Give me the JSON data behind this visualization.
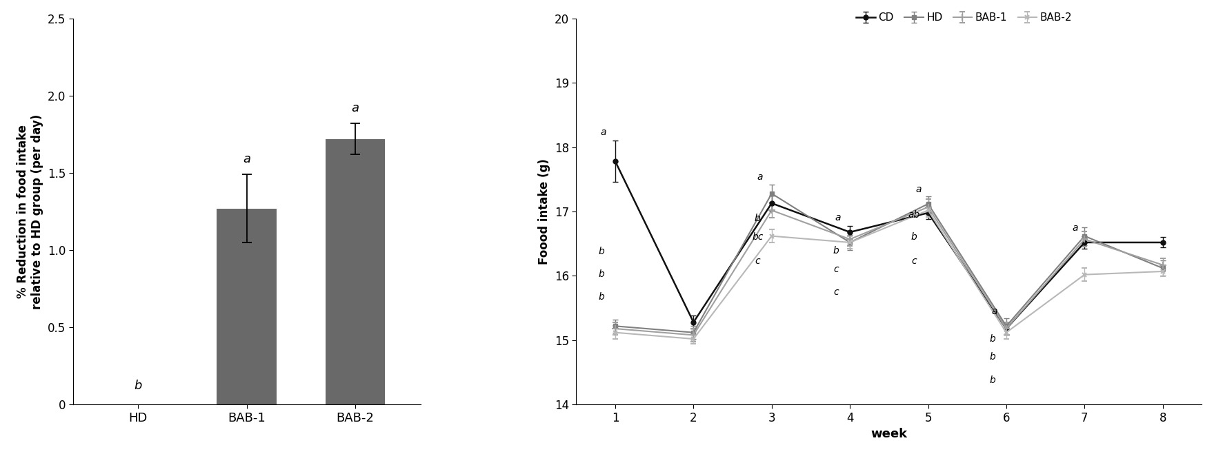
{
  "bar_categories": [
    "HD",
    "BAB-1",
    "BAB-2"
  ],
  "bar_values": [
    0.0,
    1.27,
    1.72
  ],
  "bar_errors": [
    0.0,
    0.22,
    0.1
  ],
  "bar_labels": [
    "b",
    "a",
    "a"
  ],
  "bar_color": "#696969",
  "bar_ylabel": "% Reduction in food intake\nrelative to HD group (per day)",
  "bar_ylim": [
    0,
    2.5
  ],
  "bar_yticks": [
    0,
    0.5,
    1.0,
    1.5,
    2.0,
    2.5
  ],
  "line_weeks": [
    1,
    2,
    3,
    4,
    5,
    6,
    7,
    8
  ],
  "line_xlabel": "week",
  "line_ylabel": "Foood intake (g)",
  "line_ylim": [
    14,
    20
  ],
  "line_yticks": [
    14,
    15,
    16,
    17,
    18,
    19,
    20
  ],
  "CD_values": [
    17.78,
    15.28,
    17.13,
    16.68,
    16.98,
    15.18,
    16.52,
    16.52
  ],
  "CD_errors": [
    0.32,
    0.1,
    0.12,
    0.1,
    0.1,
    0.1,
    0.1,
    0.08
  ],
  "HD_values": [
    15.22,
    15.12,
    17.28,
    16.52,
    17.12,
    15.22,
    16.62,
    16.12
  ],
  "HD_errors": [
    0.1,
    0.1,
    0.14,
    0.12,
    0.12,
    0.12,
    0.14,
    0.12
  ],
  "BAB1_values": [
    15.18,
    15.08,
    17.02,
    16.57,
    17.07,
    15.18,
    16.57,
    16.17
  ],
  "BAB1_errors": [
    0.1,
    0.1,
    0.12,
    0.1,
    0.12,
    0.1,
    0.12,
    0.1
  ],
  "BAB2_values": [
    15.12,
    15.02,
    16.62,
    16.52,
    17.02,
    15.12,
    16.02,
    16.07
  ],
  "BAB2_errors": [
    0.1,
    0.08,
    0.1,
    0.1,
    0.1,
    0.1,
    0.1,
    0.08
  ],
  "background_color": "#ffffff"
}
